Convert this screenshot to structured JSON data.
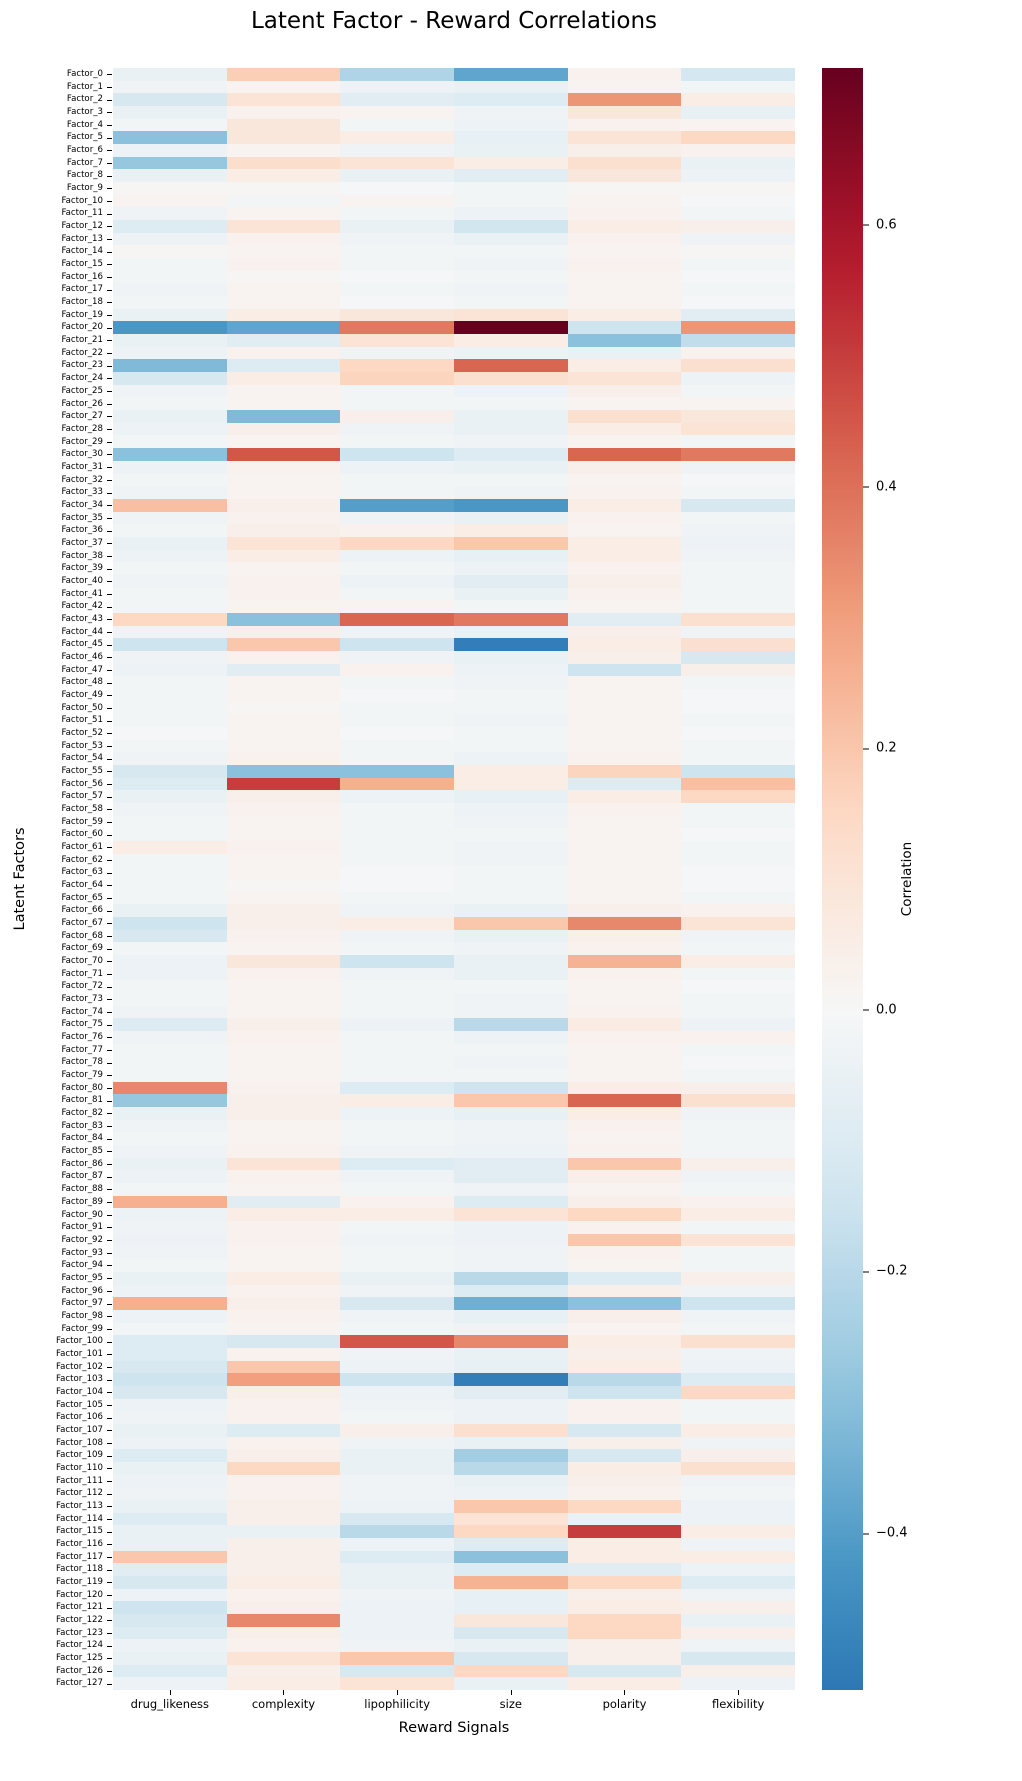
{
  "chart_data": {
    "type": "heatmap",
    "title": "Latent Factor - Reward Correlations",
    "xlabel": "Reward Signals",
    "ylabel": "Latent Factors",
    "columns": [
      "drug_likeness",
      "complexity",
      "lipophilicity",
      "size",
      "polarity",
      "flexibility"
    ],
    "rows": [
      "Factor_0",
      "Factor_1",
      "Factor_2",
      "Factor_3",
      "Factor_4",
      "Factor_5",
      "Factor_6",
      "Factor_7",
      "Factor_8",
      "Factor_9",
      "Factor_10",
      "Factor_11",
      "Factor_12",
      "Factor_13",
      "Factor_14",
      "Factor_15",
      "Factor_16",
      "Factor_17",
      "Factor_18",
      "Factor_19",
      "Factor_20",
      "Factor_21",
      "Factor_22",
      "Factor_23",
      "Factor_24",
      "Factor_25",
      "Factor_26",
      "Factor_27",
      "Factor_28",
      "Factor_29",
      "Factor_30",
      "Factor_31",
      "Factor_32",
      "Factor_33",
      "Factor_34",
      "Factor_35",
      "Factor_36",
      "Factor_37",
      "Factor_38",
      "Factor_39",
      "Factor_40",
      "Factor_41",
      "Factor_42",
      "Factor_43",
      "Factor_44",
      "Factor_45",
      "Factor_46",
      "Factor_47",
      "Factor_48",
      "Factor_49",
      "Factor_50",
      "Factor_51",
      "Factor_52",
      "Factor_53",
      "Factor_54",
      "Factor_55",
      "Factor_56",
      "Factor_57",
      "Factor_58",
      "Factor_59",
      "Factor_60",
      "Factor_61",
      "Factor_62",
      "Factor_63",
      "Factor_64",
      "Factor_65",
      "Factor_66",
      "Factor_67",
      "Factor_68",
      "Factor_69",
      "Factor_70",
      "Factor_71",
      "Factor_72",
      "Factor_73",
      "Factor_74",
      "Factor_75",
      "Factor_76",
      "Factor_77",
      "Factor_78",
      "Factor_79",
      "Factor_80",
      "Factor_81",
      "Factor_82",
      "Factor_83",
      "Factor_84",
      "Factor_85",
      "Factor_86",
      "Factor_87",
      "Factor_88",
      "Factor_89",
      "Factor_90",
      "Factor_91",
      "Factor_92",
      "Factor_93",
      "Factor_94",
      "Factor_95",
      "Factor_96",
      "Factor_97",
      "Factor_98",
      "Factor_99",
      "Factor_100",
      "Factor_101",
      "Factor_102",
      "Factor_103",
      "Factor_104",
      "Factor_105",
      "Factor_106",
      "Factor_107",
      "Factor_108",
      "Factor_109",
      "Factor_110",
      "Factor_111",
      "Factor_112",
      "Factor_113",
      "Factor_114",
      "Factor_115",
      "Factor_116",
      "Factor_117",
      "Factor_118",
      "Factor_119",
      "Factor_120",
      "Factor_121",
      "Factor_122",
      "Factor_123",
      "Factor_124",
      "Factor_125",
      "Factor_126",
      "Factor_127"
    ],
    "values": [
      [
        -0.05,
        0.18,
        -0.22,
        -0.38,
        0.03,
        -0.13
      ],
      [
        -0.03,
        0.02,
        -0.04,
        -0.05,
        0.02,
        -0.02
      ],
      [
        -0.12,
        0.1,
        -0.08,
        -0.1,
        0.32,
        0.05
      ],
      [
        -0.05,
        0.03,
        0.02,
        -0.03,
        0.08,
        -0.06
      ],
      [
        -0.02,
        0.08,
        -0.02,
        -0.04,
        0.03,
        0.02
      ],
      [
        -0.3,
        0.08,
        0.05,
        -0.06,
        0.1,
        0.15
      ],
      [
        -0.04,
        0.02,
        -0.03,
        -0.05,
        0.04,
        0.03
      ],
      [
        -0.28,
        0.13,
        0.1,
        0.05,
        0.12,
        -0.05
      ],
      [
        -0.05,
        0.05,
        -0.05,
        -0.08,
        0.08,
        -0.04
      ],
      [
        0.01,
        0.01,
        -0.01,
        -0.02,
        0.01,
        0.01
      ],
      [
        0.02,
        -0.02,
        0.02,
        -0.02,
        0.02,
        -0.01
      ],
      [
        -0.03,
        0.02,
        -0.02,
        -0.04,
        0.03,
        -0.02
      ],
      [
        -0.1,
        0.1,
        -0.05,
        -0.14,
        0.05,
        0.04
      ],
      [
        -0.04,
        0.03,
        -0.03,
        -0.05,
        0.03,
        -0.03
      ],
      [
        0.01,
        0.02,
        -0.02,
        -0.02,
        0.02,
        0.01
      ],
      [
        -0.02,
        0.03,
        -0.02,
        -0.03,
        0.03,
        -0.02
      ],
      [
        -0.02,
        0.01,
        -0.01,
        -0.02,
        0.02,
        -0.01
      ],
      [
        -0.03,
        0.02,
        -0.02,
        -0.03,
        0.02,
        -0.02
      ],
      [
        -0.02,
        0.02,
        -0.01,
        -0.02,
        0.02,
        -0.01
      ],
      [
        -0.05,
        0.05,
        0.08,
        0.1,
        0.05,
        -0.08
      ],
      [
        -0.42,
        -0.38,
        0.38,
        0.72,
        -0.15,
        0.32
      ],
      [
        -0.05,
        -0.08,
        0.1,
        0.05,
        -0.3,
        -0.18
      ],
      [
        -0.04,
        0.03,
        -0.03,
        -0.04,
        -0.05,
        0.03
      ],
      [
        -0.32,
        -0.1,
        0.15,
        0.42,
        0.05,
        0.12
      ],
      [
        -0.12,
        0.05,
        0.16,
        0.12,
        0.1,
        -0.04
      ],
      [
        -0.03,
        0.02,
        -0.02,
        -0.04,
        0.04,
        -0.02
      ],
      [
        -0.02,
        0.02,
        -0.02,
        -0.02,
        0.02,
        0.02
      ],
      [
        -0.05,
        -0.32,
        0.04,
        -0.05,
        0.12,
        0.08
      ],
      [
        -0.04,
        0.04,
        -0.03,
        -0.05,
        0.05,
        0.1
      ],
      [
        -0.02,
        0.02,
        -0.02,
        -0.03,
        0.02,
        -0.02
      ],
      [
        -0.3,
        0.45,
        -0.15,
        -0.1,
        0.42,
        0.38
      ],
      [
        -0.04,
        0.03,
        -0.04,
        -0.05,
        0.04,
        -0.03
      ],
      [
        -0.02,
        0.02,
        -0.02,
        -0.02,
        0.02,
        -0.01
      ],
      [
        -0.03,
        0.02,
        -0.02,
        -0.03,
        0.03,
        -0.02
      ],
      [
        0.22,
        0.04,
        -0.4,
        -0.42,
        0.05,
        -0.12
      ],
      [
        -0.03,
        0.03,
        -0.03,
        -0.05,
        0.03,
        -0.02
      ],
      [
        -0.02,
        0.04,
        0.03,
        0.05,
        0.02,
        -0.03
      ],
      [
        -0.05,
        0.1,
        0.15,
        0.2,
        0.05,
        -0.04
      ],
      [
        -0.04,
        0.05,
        -0.04,
        -0.06,
        0.05,
        -0.03
      ],
      [
        -0.02,
        0.02,
        -0.02,
        -0.04,
        0.03,
        -0.02
      ],
      [
        -0.03,
        0.03,
        -0.04,
        -0.08,
        0.04,
        -0.02
      ],
      [
        -0.02,
        0.03,
        -0.02,
        -0.05,
        0.03,
        -0.02
      ],
      [
        -0.02,
        0.02,
        0.02,
        -0.02,
        0.02,
        -0.02
      ],
      [
        0.15,
        -0.3,
        0.42,
        0.38,
        -0.08,
        0.12
      ],
      [
        -0.03,
        0.04,
        -0.03,
        -0.05,
        0.04,
        -0.03
      ],
      [
        -0.15,
        0.2,
        -0.15,
        -0.5,
        0.05,
        0.12
      ],
      [
        -0.03,
        0.03,
        -0.03,
        -0.05,
        0.04,
        -0.12
      ],
      [
        -0.04,
        -0.08,
        0.03,
        -0.04,
        -0.15,
        0.04
      ],
      [
        -0.02,
        0.02,
        -0.02,
        -0.03,
        0.02,
        -0.02
      ],
      [
        -0.02,
        0.02,
        -0.01,
        -0.02,
        0.02,
        -0.01
      ],
      [
        -0.02,
        0.01,
        -0.02,
        -0.02,
        0.02,
        -0.01
      ],
      [
        -0.02,
        0.02,
        -0.02,
        -0.03,
        0.02,
        -0.02
      ],
      [
        -0.01,
        0.02,
        -0.01,
        -0.02,
        0.02,
        -0.01
      ],
      [
        -0.02,
        0.02,
        -0.02,
        -0.02,
        0.02,
        -0.02
      ],
      [
        -0.03,
        0.03,
        -0.02,
        -0.04,
        0.03,
        -0.02
      ],
      [
        -0.12,
        -0.3,
        -0.3,
        0.05,
        0.16,
        -0.15
      ],
      [
        -0.1,
        0.5,
        0.26,
        0.05,
        -0.1,
        0.22
      ],
      [
        -0.05,
        0.04,
        -0.04,
        -0.06,
        0.05,
        0.15
      ],
      [
        -0.03,
        0.03,
        -0.02,
        -0.04,
        0.03,
        -0.02
      ],
      [
        -0.02,
        0.02,
        -0.02,
        -0.03,
        0.02,
        -0.02
      ],
      [
        -0.02,
        0.02,
        -0.02,
        -0.02,
        0.02,
        -0.01
      ],
      [
        0.05,
        0.03,
        -0.02,
        -0.03,
        0.02,
        -0.02
      ],
      [
        -0.02,
        0.02,
        -0.02,
        -0.03,
        0.02,
        -0.02
      ],
      [
        -0.02,
        0.02,
        -0.01,
        -0.02,
        0.02,
        -0.01
      ],
      [
        -0.02,
        0.01,
        -0.01,
        -0.02,
        0.02,
        -0.01
      ],
      [
        -0.02,
        0.02,
        -0.02,
        -0.02,
        0.02,
        -0.02
      ],
      [
        -0.05,
        0.04,
        -0.03,
        -0.05,
        0.04,
        0.03
      ],
      [
        -0.15,
        0.04,
        0.05,
        0.2,
        0.35,
        0.1
      ],
      [
        -0.12,
        0.03,
        -0.03,
        -0.05,
        0.04,
        -0.03
      ],
      [
        -0.02,
        0.02,
        -0.02,
        -0.03,
        0.03,
        -0.02
      ],
      [
        -0.04,
        0.08,
        -0.15,
        -0.05,
        0.25,
        0.05
      ],
      [
        -0.04,
        0.03,
        -0.03,
        -0.05,
        0.03,
        -0.02
      ],
      [
        -0.02,
        0.02,
        -0.02,
        -0.02,
        0.02,
        -0.01
      ],
      [
        -0.02,
        0.02,
        -0.02,
        -0.03,
        0.02,
        -0.02
      ],
      [
        -0.03,
        0.02,
        -0.02,
        -0.03,
        0.03,
        -0.02
      ],
      [
        -0.1,
        0.04,
        -0.04,
        -0.2,
        0.06,
        -0.04
      ],
      [
        -0.03,
        0.03,
        -0.02,
        -0.04,
        0.03,
        0.03
      ],
      [
        -0.02,
        0.02,
        -0.02,
        -0.02,
        0.02,
        -0.02
      ],
      [
        -0.02,
        0.02,
        -0.02,
        -0.03,
        0.02,
        -0.01
      ],
      [
        -0.02,
        0.02,
        -0.02,
        -0.02,
        0.02,
        -0.02
      ],
      [
        0.35,
        0.03,
        -0.1,
        -0.15,
        0.05,
        0.04
      ],
      [
        -0.28,
        0.04,
        0.05,
        0.2,
        0.42,
        0.12
      ],
      [
        -0.05,
        0.04,
        -0.04,
        -0.06,
        0.05,
        -0.03
      ],
      [
        -0.03,
        0.02,
        -0.02,
        -0.03,
        0.03,
        -0.02
      ],
      [
        -0.02,
        0.02,
        -0.02,
        -0.03,
        0.02,
        -0.02
      ],
      [
        -0.03,
        0.03,
        -0.03,
        -0.04,
        0.03,
        -0.02
      ],
      [
        -0.05,
        0.1,
        -0.1,
        -0.08,
        0.2,
        0.04
      ],
      [
        -0.04,
        0.03,
        -0.03,
        -0.08,
        0.04,
        -0.03
      ],
      [
        -0.02,
        0.02,
        -0.02,
        -0.03,
        0.02,
        -0.02
      ],
      [
        0.26,
        -0.08,
        0.03,
        -0.1,
        0.04,
        0.03
      ],
      [
        -0.04,
        0.05,
        0.05,
        0.1,
        0.15,
        0.05
      ],
      [
        -0.03,
        0.03,
        -0.02,
        -0.04,
        0.03,
        -0.02
      ],
      [
        -0.04,
        0.03,
        -0.03,
        -0.04,
        0.2,
        0.1
      ],
      [
        -0.03,
        0.02,
        -0.02,
        -0.03,
        0.03,
        -0.02
      ],
      [
        -0.02,
        0.02,
        -0.02,
        -0.03,
        0.02,
        -0.02
      ],
      [
        -0.05,
        0.05,
        -0.05,
        -0.2,
        -0.1,
        0.04
      ],
      [
        -0.04,
        0.03,
        -0.03,
        -0.1,
        0.04,
        -0.03
      ],
      [
        0.26,
        0.04,
        -0.12,
        -0.35,
        -0.3,
        -0.15
      ],
      [
        -0.04,
        0.03,
        -0.03,
        -0.06,
        0.04,
        -0.03
      ],
      [
        -0.02,
        0.02,
        -0.02,
        -0.03,
        0.02,
        -0.02
      ],
      [
        -0.1,
        -0.12,
        0.45,
        0.35,
        0.05,
        0.12
      ],
      [
        -0.1,
        0.03,
        -0.03,
        -0.05,
        0.04,
        -0.03
      ],
      [
        -0.12,
        0.2,
        -0.04,
        -0.06,
        0.05,
        -0.04
      ],
      [
        -0.15,
        0.3,
        -0.15,
        -0.5,
        -0.2,
        -0.1
      ],
      [
        -0.12,
        0.04,
        -0.04,
        -0.08,
        -0.15,
        0.15
      ],
      [
        -0.04,
        0.03,
        -0.03,
        -0.04,
        0.03,
        -0.02
      ],
      [
        -0.03,
        0.03,
        -0.02,
        -0.04,
        0.03,
        -0.02
      ],
      [
        -0.05,
        -0.1,
        0.04,
        0.12,
        -0.12,
        0.05
      ],
      [
        -0.04,
        0.03,
        -0.03,
        -0.05,
        0.04,
        -0.03
      ],
      [
        -0.1,
        0.04,
        -0.05,
        -0.25,
        -0.12,
        0.04
      ],
      [
        -0.05,
        0.15,
        -0.05,
        -0.2,
        0.05,
        0.12
      ],
      [
        -0.04,
        0.03,
        -0.03,
        -0.05,
        0.04,
        -0.03
      ],
      [
        -0.03,
        0.03,
        -0.03,
        -0.04,
        0.03,
        -0.02
      ],
      [
        -0.05,
        0.04,
        -0.04,
        0.2,
        0.15,
        -0.04
      ],
      [
        -0.1,
        0.04,
        -0.12,
        0.1,
        -0.05,
        -0.04
      ],
      [
        -0.05,
        -0.05,
        -0.2,
        0.15,
        0.5,
        0.05
      ],
      [
        -0.05,
        0.04,
        -0.04,
        -0.1,
        0.05,
        -0.03
      ],
      [
        0.2,
        0.04,
        -0.1,
        -0.3,
        0.05,
        0.05
      ],
      [
        -0.08,
        0.04,
        -0.05,
        -0.1,
        -0.08,
        -0.04
      ],
      [
        -0.12,
        0.05,
        -0.05,
        0.25,
        0.15,
        -0.1
      ],
      [
        -0.04,
        0.03,
        -0.03,
        -0.06,
        0.04,
        -0.03
      ],
      [
        -0.15,
        0.04,
        -0.04,
        -0.06,
        0.05,
        0.04
      ],
      [
        -0.12,
        0.35,
        -0.04,
        0.08,
        0.15,
        -0.05
      ],
      [
        -0.1,
        0.04,
        -0.04,
        -0.12,
        0.15,
        0.04
      ],
      [
        -0.04,
        0.03,
        -0.03,
        -0.05,
        0.04,
        -0.03
      ],
      [
        -0.05,
        0.1,
        0.2,
        -0.12,
        0.04,
        -0.12
      ],
      [
        -0.1,
        0.04,
        -0.12,
        0.15,
        -0.12,
        0.04
      ],
      [
        -0.04,
        0.05,
        0.1,
        -0.05,
        0.05,
        -0.04
      ]
    ],
    "colorbar": {
      "label": "Correlation",
      "ticks": [
        0.6,
        0.4,
        0.2,
        0.0,
        -0.2,
        -0.4
      ],
      "vmin": -0.52,
      "vmax": 0.72,
      "colormap": "RdBu_r"
    },
    "grid": false,
    "legend": false
  }
}
